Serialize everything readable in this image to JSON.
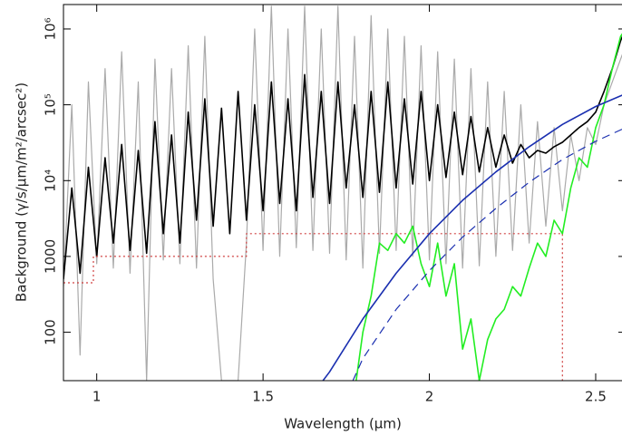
{
  "chart_data": {
    "type": "line",
    "xlabel": "Wavelength (μm)",
    "ylabel": "Background (γ/s/μm/m²/arcsec²)",
    "log_y": true,
    "xlim": [
      0.9,
      2.59
    ],
    "ylim": [
      23,
      2100000
    ],
    "xticks": [
      1,
      1.5,
      2,
      2.5
    ],
    "yticks": [
      100,
      1000,
      {
        "value": 10000,
        "label": "10⁴"
      },
      {
        "value": 100000,
        "label": "10⁵"
      },
      {
        "value": 1000000,
        "label": "10⁶"
      }
    ],
    "series": [
      {
        "color": "#aaaaaa",
        "style": "solid",
        "x": [
          0.9,
          0.925,
          0.95,
          0.975,
          1,
          1.025,
          1.05,
          1.075,
          1.1,
          1.125,
          1.15,
          1.175,
          1.2,
          1.225,
          1.25,
          1.275,
          1.3,
          1.325,
          1.35,
          1.375,
          1.4,
          1.425,
          1.45,
          1.475,
          1.5,
          1.525,
          1.55,
          1.575,
          1.6,
          1.625,
          1.65,
          1.675,
          1.7,
          1.725,
          1.75,
          1.775,
          1.8,
          1.825,
          1.85,
          1.875,
          1.9,
          1.925,
          1.95,
          1.975,
          2,
          2.025,
          2.05,
          2.075,
          2.1,
          2.125,
          2.15,
          2.175,
          2.2,
          2.225,
          2.25,
          2.275,
          2.3,
          2.325,
          2.35,
          2.375,
          2.4,
          2.425,
          2.45,
          2.475,
          2.5,
          2.525,
          2.55,
          2.575,
          2.59
        ],
        "values": [
          400,
          100000,
          50,
          200000,
          800,
          300000,
          700,
          500000,
          600,
          200000,
          23,
          400000,
          900,
          300000,
          800,
          600000,
          700,
          800000,
          500,
          23,
          23,
          23,
          1500,
          1000000,
          1200,
          2000000,
          1000,
          1000000,
          1300,
          2000000,
          1200,
          1000000,
          1100,
          2000000,
          900,
          800000,
          700,
          1500000,
          1100,
          1000000,
          1200,
          800000,
          1000,
          600000,
          900,
          500000,
          800,
          400000,
          700,
          300000,
          750,
          200000,
          1000,
          150000,
          1200,
          100000,
          1500,
          60000,
          2500,
          50000,
          4000,
          40000,
          10000,
          50000,
          30000,
          100000,
          200000,
          400000,
          600000
        ]
      },
      {
        "color": "#000000",
        "style": "solid",
        "x": [
          0.9,
          0.925,
          0.95,
          0.975,
          1,
          1.025,
          1.05,
          1.075,
          1.1,
          1.125,
          1.15,
          1.175,
          1.2,
          1.225,
          1.25,
          1.275,
          1.3,
          1.325,
          1.35,
          1.375,
          1.4,
          1.425,
          1.45,
          1.475,
          1.5,
          1.525,
          1.55,
          1.575,
          1.6,
          1.625,
          1.65,
          1.675,
          1.7,
          1.725,
          1.75,
          1.775,
          1.8,
          1.825,
          1.85,
          1.875,
          1.9,
          1.925,
          1.95,
          1.975,
          2,
          2.025,
          2.05,
          2.075,
          2.1,
          2.125,
          2.15,
          2.175,
          2.2,
          2.225,
          2.25,
          2.275,
          2.3,
          2.325,
          2.35,
          2.375,
          2.4,
          2.425,
          2.45,
          2.475,
          2.5,
          2.525,
          2.55,
          2.575,
          2.59
        ],
        "values": [
          500,
          8000,
          600,
          15000,
          1000,
          20000,
          1500,
          30000,
          1200,
          25000,
          1100,
          60000,
          2000,
          40000,
          1500,
          80000,
          3000,
          120000,
          2500,
          90000,
          2000,
          150000,
          3000,
          100000,
          4000,
          200000,
          5000,
          120000,
          4000,
          250000,
          6000,
          150000,
          5000,
          200000,
          8000,
          100000,
          6000,
          150000,
          7000,
          200000,
          8000,
          120000,
          9000,
          150000,
          10000,
          100000,
          11000,
          80000,
          12000,
          70000,
          13000,
          50000,
          15000,
          40000,
          17000,
          30000,
          20000,
          25000,
          23000,
          28000,
          32000,
          40000,
          50000,
          60000,
          80000,
          150000,
          300000,
          700000,
          1000000
        ]
      },
      {
        "color": "#d04040",
        "style": "dotted",
        "x": [
          0.9,
          0.99,
          0.99,
          1.45,
          1.45,
          2.4,
          2.4
        ],
        "values": [
          450,
          450,
          1000,
          1000,
          2000,
          2000,
          23
        ]
      },
      {
        "color": "#22ee22",
        "style": "solid",
        "x": [
          1.78,
          1.8,
          1.825,
          1.85,
          1.875,
          1.9,
          1.925,
          1.95,
          1.975,
          2,
          2.025,
          2.05,
          2.075,
          2.1,
          2.125,
          2.15,
          2.175,
          2.2,
          2.225,
          2.25,
          2.275,
          2.3,
          2.325,
          2.35,
          2.375,
          2.4,
          2.425,
          2.45,
          2.475,
          2.5,
          2.525,
          2.55,
          2.575,
          2.59
        ],
        "values": [
          23,
          100,
          300,
          1500,
          1200,
          2000,
          1500,
          2500,
          800,
          400,
          1500,
          300,
          800,
          60,
          150,
          23,
          80,
          150,
          200,
          400,
          300,
          700,
          1500,
          1000,
          3000,
          2000,
          8000,
          20000,
          15000,
          50000,
          100000,
          300000,
          800000,
          1000000
        ]
      },
      {
        "color": "#1a2fb0",
        "style": "solid",
        "x": [
          1.68,
          1.7,
          1.8,
          1.9,
          2.0,
          2.1,
          2.2,
          2.3,
          2.4,
          2.5,
          2.59
        ],
        "values": [
          23,
          30,
          150,
          600,
          2000,
          5500,
          13000,
          28000,
          55000,
          95000,
          140000
        ]
      },
      {
        "color": "#1a2fb0",
        "style": "dashed",
        "x": [
          1.77,
          1.8,
          1.9,
          2.0,
          2.1,
          2.2,
          2.3,
          2.4,
          2.5,
          2.59
        ],
        "values": [
          23,
          45,
          200,
          650,
          1800,
          4300,
          9500,
          19000,
          33000,
          50000
        ]
      }
    ]
  }
}
